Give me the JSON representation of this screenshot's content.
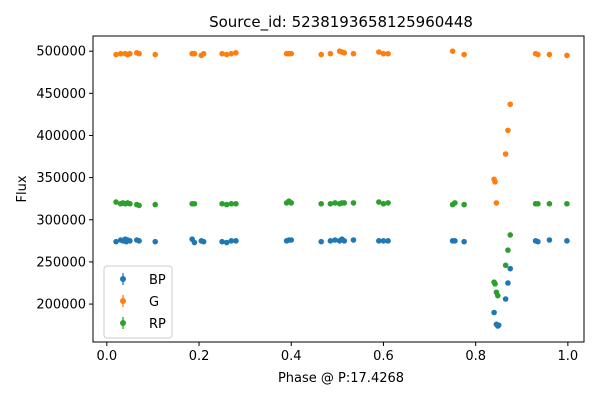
{
  "chart_data": {
    "type": "scatter",
    "title": "Source_id: 5238193658125960448",
    "xlabel": "Phase @ P:17.4268",
    "ylabel": "Flux",
    "xlim": [
      -0.03,
      1.035
    ],
    "ylim": [
      155000,
      518000
    ],
    "xticks": [
      0.0,
      0.2,
      0.4,
      0.6,
      0.8,
      1.0
    ],
    "xtick_labels": [
      "0.0",
      "0.2",
      "0.4",
      "0.6",
      "0.8",
      "1.0"
    ],
    "yticks": [
      200000,
      250000,
      300000,
      350000,
      400000,
      450000,
      500000
    ],
    "ytick_labels": [
      "200000",
      "250000",
      "300000",
      "350000",
      "400000",
      "450000",
      "500000"
    ],
    "grid": false,
    "legend_position": "bottom-left",
    "series": [
      {
        "name": "BP",
        "color": "#1f77b4",
        "x": [
          0.02,
          0.03,
          0.035,
          0.04,
          0.042,
          0.045,
          0.05,
          0.065,
          0.07,
          0.105,
          0.185,
          0.19,
          0.205,
          0.21,
          0.25,
          0.26,
          0.27,
          0.28,
          0.39,
          0.395,
          0.4,
          0.465,
          0.485,
          0.495,
          0.505,
          0.51,
          0.515,
          0.535,
          0.59,
          0.6,
          0.61,
          0.75,
          0.755,
          0.775,
          0.84,
          0.845,
          0.848,
          0.85,
          0.865,
          0.87,
          0.875,
          0.93,
          0.935,
          0.96,
          0.998
        ],
        "y": [
          274000,
          276000,
          275000,
          277000,
          274000,
          276000,
          275000,
          276000,
          275000,
          274000,
          277000,
          273000,
          275000,
          274000,
          274000,
          273000,
          275000,
          275000,
          275000,
          276000,
          276000,
          274000,
          275000,
          276000,
          275000,
          277000,
          275000,
          276000,
          275000,
          275000,
          275000,
          275000,
          275000,
          274000,
          190000,
          176000,
          174000,
          175000,
          206000,
          225000,
          242000,
          275000,
          274000,
          276000,
          275000
        ]
      },
      {
        "name": "G",
        "color": "#ff7f0e",
        "x": [
          0.02,
          0.03,
          0.04,
          0.045,
          0.05,
          0.065,
          0.07,
          0.105,
          0.185,
          0.19,
          0.205,
          0.21,
          0.25,
          0.26,
          0.27,
          0.28,
          0.39,
          0.395,
          0.4,
          0.465,
          0.485,
          0.505,
          0.51,
          0.515,
          0.535,
          0.59,
          0.6,
          0.61,
          0.75,
          0.775,
          0.84,
          0.842,
          0.845,
          0.865,
          0.87,
          0.875,
          0.93,
          0.935,
          0.96,
          0.998
        ],
        "y": [
          496000,
          497000,
          497000,
          496000,
          497000,
          498000,
          497000,
          496000,
          497000,
          497000,
          495000,
          497000,
          497000,
          496000,
          497000,
          498000,
          497000,
          497000,
          497000,
          496000,
          497000,
          500000,
          499000,
          498000,
          497000,
          499000,
          497000,
          497000,
          500000,
          496000,
          348000,
          345000,
          320000,
          378000,
          406000,
          437000,
          497000,
          496000,
          496000,
          495000
        ]
      },
      {
        "name": "RP",
        "color": "#2ca02c",
        "x": [
          0.02,
          0.03,
          0.035,
          0.04,
          0.045,
          0.05,
          0.065,
          0.07,
          0.105,
          0.185,
          0.19,
          0.25,
          0.26,
          0.27,
          0.28,
          0.39,
          0.395,
          0.4,
          0.465,
          0.485,
          0.495,
          0.505,
          0.51,
          0.515,
          0.535,
          0.59,
          0.6,
          0.61,
          0.75,
          0.755,
          0.775,
          0.84,
          0.842,
          0.845,
          0.848,
          0.865,
          0.87,
          0.875,
          0.93,
          0.935,
          0.96,
          0.998
        ],
        "y": [
          321000,
          319000,
          320000,
          319000,
          320000,
          319000,
          318000,
          317000,
          318000,
          319000,
          319000,
          319000,
          318000,
          319000,
          319000,
          320000,
          322000,
          320000,
          319000,
          319000,
          320000,
          319000,
          320000,
          320000,
          320000,
          321000,
          319000,
          320000,
          318000,
          320000,
          318000,
          226000,
          224000,
          214000,
          210000,
          246000,
          264000,
          282000,
          319000,
          319000,
          319000,
          319000
        ]
      }
    ]
  }
}
